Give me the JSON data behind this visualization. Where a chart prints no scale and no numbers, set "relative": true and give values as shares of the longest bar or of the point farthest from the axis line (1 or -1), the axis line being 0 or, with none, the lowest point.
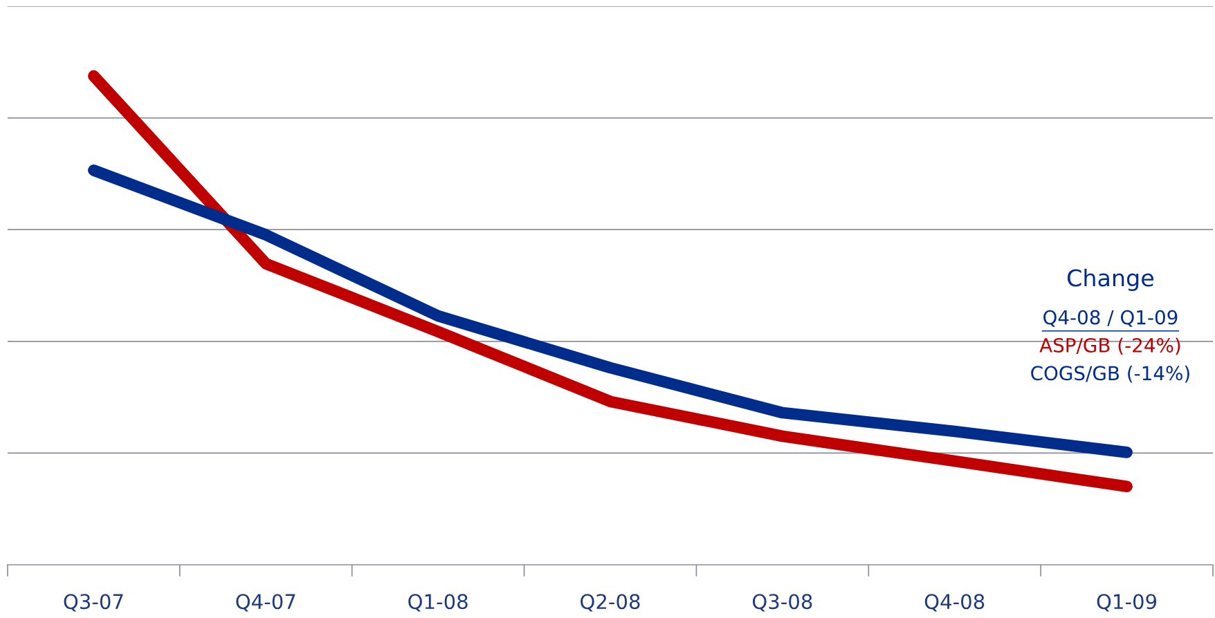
{
  "chart_data": {
    "type": "line",
    "relative": true,
    "grid": "y",
    "legend": "right",
    "line_style": "solid",
    "categories": [
      "Q3-07",
      "Q4-07",
      "Q1-08",
      "Q2-08",
      "Q3-08",
      "Q4-08",
      "Q1-09"
    ],
    "series": [
      {
        "name": "ASP/GB (-24%)",
        "color": "#c00000",
        "values": [
          1,
          0.616,
          0.477,
          0.334,
          0.263,
          0.212,
          0.16
        ]
      },
      {
        "name": "COGS/GB (-14%)",
        "color": "#002d8c",
        "values": [
          0.807,
          0.675,
          0.509,
          0.403,
          0.311,
          0.273,
          0.23
        ]
      }
    ],
    "annotations": [
      "Change",
      "Q4-08 / Q1-09"
    ]
  }
}
